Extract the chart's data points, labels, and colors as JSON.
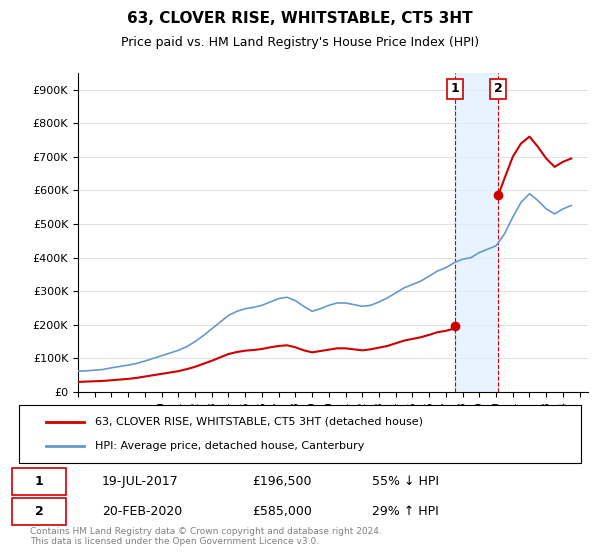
{
  "title": "63, CLOVER RISE, WHITSTABLE, CT5 3HT",
  "subtitle": "Price paid vs. HM Land Registry's House Price Index (HPI)",
  "hpi_color": "#6699cc",
  "price_color": "#cc0000",
  "shade_color": "#ddeeff",
  "transaction1": {
    "date": "19-JUL-2017",
    "price": 196500,
    "pct": "55% ↓ HPI",
    "label": "1"
  },
  "transaction2": {
    "date": "20-FEB-2020",
    "price": 585000,
    "pct": "29% ↑ HPI",
    "label": "2"
  },
  "legend_line1": "63, CLOVER RISE, WHITSTABLE, CT5 3HT (detached house)",
  "legend_line2": "HPI: Average price, detached house, Canterbury",
  "footnote": "Contains HM Land Registry data © Crown copyright and database right 2024.\nThis data is licensed under the Open Government Licence v3.0.",
  "ylim": [
    0,
    950000
  ],
  "yticks": [
    0,
    100000,
    200000,
    300000,
    400000,
    500000,
    600000,
    700000,
    800000,
    900000
  ],
  "xlim_start": 1995.0,
  "xlim_end": 2025.5,
  "shade_x1": 2017.54,
  "shade_x2": 2020.13,
  "vline1_x": 2017.54,
  "vline2_x": 2020.13,
  "dot1_x": 2017.54,
  "dot1_y": 196500,
  "dot2_x": 2020.13,
  "dot2_y": 585000,
  "hpi_data_x": [
    1995,
    1995.5,
    1996,
    1996.5,
    1997,
    1997.5,
    1998,
    1998.5,
    1999,
    1999.5,
    2000,
    2000.5,
    2001,
    2001.5,
    2002,
    2002.5,
    2003,
    2003.5,
    2004,
    2004.5,
    2005,
    2005.5,
    2006,
    2006.5,
    2007,
    2007.5,
    2008,
    2008.5,
    2009,
    2009.5,
    2010,
    2010.5,
    2011,
    2011.5,
    2012,
    2012.5,
    2013,
    2013.5,
    2014,
    2014.5,
    2015,
    2015.5,
    2016,
    2016.5,
    2017,
    2017.5,
    2018,
    2018.5,
    2019,
    2019.5,
    2020,
    2020.5,
    2021,
    2021.5,
    2022,
    2022.5,
    2023,
    2023.5,
    2024,
    2024.5
  ],
  "hpi_data_y": [
    62000,
    63000,
    65000,
    67000,
    72000,
    76000,
    80000,
    85000,
    92000,
    100000,
    108000,
    116000,
    124000,
    135000,
    150000,
    168000,
    188000,
    208000,
    228000,
    240000,
    248000,
    252000,
    258000,
    268000,
    278000,
    282000,
    272000,
    255000,
    240000,
    248000,
    258000,
    265000,
    265000,
    260000,
    255000,
    258000,
    268000,
    280000,
    295000,
    310000,
    320000,
    330000,
    345000,
    360000,
    370000,
    385000,
    395000,
    400000,
    415000,
    425000,
    435000,
    470000,
    520000,
    565000,
    590000,
    570000,
    545000,
    530000,
    545000,
    555000
  ],
  "price_data_x": [
    1995,
    1995.5,
    1996,
    1996.5,
    1997,
    1997.5,
    1998,
    1998.5,
    1999,
    1999.5,
    2000,
    2000.5,
    2001,
    2001.5,
    2002,
    2002.5,
    2003,
    2003.5,
    2004,
    2004.5,
    2005,
    2005.5,
    2006,
    2006.5,
    2007,
    2007.5,
    2008,
    2008.5,
    2009,
    2009.5,
    2010,
    2010.5,
    2011,
    2011.5,
    2012,
    2012.5,
    2013,
    2013.5,
    2014,
    2014.5,
    2015,
    2015.5,
    2016,
    2016.5,
    2017,
    2017.5,
    2017.54,
    2020.13,
    2020.5,
    2021,
    2021.5,
    2022,
    2022.5,
    2023,
    2023.5,
    2024,
    2024.5
  ],
  "price_data_y": [
    30000,
    31000,
    32000,
    33000,
    35000,
    37000,
    39000,
    42000,
    46000,
    50000,
    54000,
    58000,
    62000,
    68000,
    75000,
    84000,
    93000,
    103000,
    113000,
    119000,
    123000,
    125000,
    128000,
    133000,
    137000,
    139000,
    133000,
    124000,
    118000,
    122000,
    126000,
    130000,
    130000,
    127000,
    124000,
    127000,
    132000,
    137000,
    145000,
    153000,
    158000,
    163000,
    170000,
    178000,
    182000,
    189000,
    196500,
    585000,
    635000,
    700000,
    740000,
    760000,
    730000,
    695000,
    670000,
    685000,
    695000
  ]
}
